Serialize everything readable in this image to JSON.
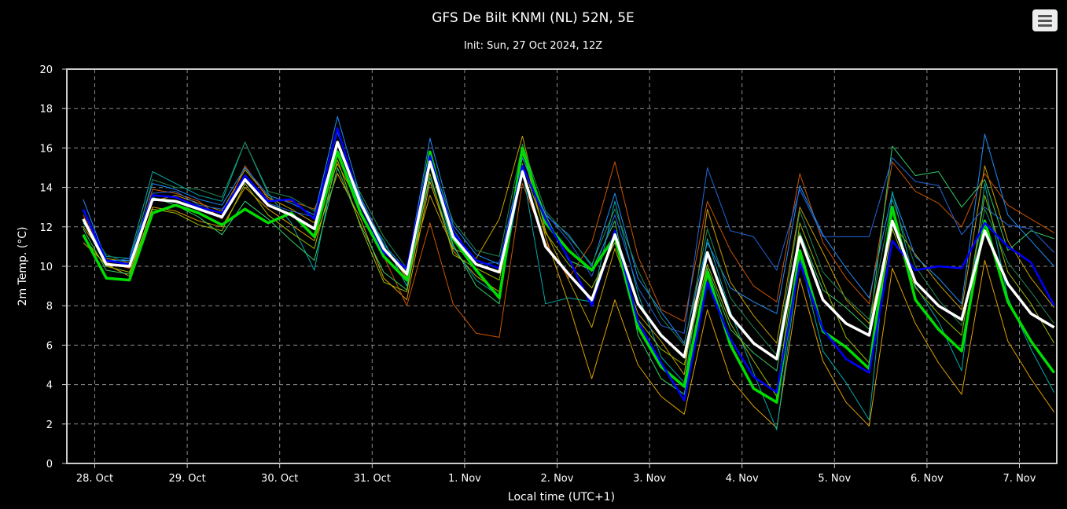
{
  "menu_icon": "hamburger-menu-icon",
  "chart_data": {
    "type": "line",
    "title": "GFS De Bilt KNMI (NL) 52N, 5E",
    "subtitle": "Init: Sun, 27 Oct 2024, 12Z",
    "xlabel": "Local time (UTC+1)",
    "ylabel": "2m Temp. (°C)",
    "ylim": [
      0,
      20
    ],
    "yticks": [
      0,
      2,
      4,
      6,
      8,
      10,
      12,
      14,
      16,
      18,
      20
    ],
    "x_tick_labels": [
      "28. Oct",
      "29. Oct",
      "30. Oct",
      "31. Oct",
      "1. Nov",
      "2. Nov",
      "3. Nov",
      "4. Nov",
      "5. Nov",
      "6. Nov",
      "7. Nov"
    ],
    "x_time_step_hours": 6,
    "x_first_hours_after_28oct_00": -3,
    "grid": true,
    "background": "#000000",
    "axis_color": "#cccccc",
    "series": [
      {
        "color": "#ffffff",
        "width": 3.5,
        "values": [
          12.4,
          10.1,
          10.0,
          13.4,
          13.3,
          12.9,
          12.5,
          14.4,
          13.1,
          12.6,
          11.9,
          16.3,
          13.2,
          10.9,
          9.6,
          15.3,
          11.5,
          10.1,
          9.7,
          14.8,
          11.0,
          9.6,
          8.3,
          11.6,
          8.1,
          6.5,
          5.4,
          10.7,
          7.5,
          6.1,
          5.3,
          11.5,
          8.3,
          7.1,
          6.5,
          12.3,
          9.2,
          8.0,
          7.3,
          11.8,
          9.1,
          7.6,
          6.9
        ]
      },
      {
        "color": "#0000ff",
        "width": 2.5,
        "values": [
          12.9,
          10.3,
          10.1,
          13.6,
          13.5,
          13.0,
          12.7,
          14.6,
          13.3,
          13.4,
          12.4,
          17.0,
          13.1,
          10.7,
          9.9,
          15.6,
          11.7,
          10.3,
          9.9,
          15.1,
          12.4,
          10.4,
          8.0,
          11.8,
          7.2,
          5.1,
          3.2,
          9.2,
          6.3,
          4.4,
          3.6,
          10.2,
          6.8,
          5.3,
          4.6,
          11.3,
          9.8,
          10.0,
          9.9,
          12.2,
          11.0,
          10.2,
          8.0
        ]
      },
      {
        "color": "#00dd00",
        "width": 3.5,
        "values": [
          11.6,
          9.4,
          9.3,
          12.7,
          13.1,
          12.7,
          12.1,
          12.9,
          12.2,
          12.7,
          11.5,
          15.8,
          12.7,
          10.5,
          9.3,
          15.8,
          11.4,
          9.8,
          8.4,
          16.0,
          12.2,
          10.8,
          9.8,
          11.5,
          6.9,
          4.9,
          3.9,
          9.7,
          6.0,
          3.8,
          3.1,
          10.8,
          6.7,
          5.9,
          4.8,
          13.0,
          8.3,
          6.8,
          5.7,
          12.3,
          8.2,
          6.2,
          4.6
        ]
      },
      {
        "color": "#e0a000",
        "width": 1,
        "values": [
          11.2,
          10.1,
          9.5,
          13.0,
          12.8,
          12.3,
          12.0,
          14.0,
          12.9,
          12.1,
          11.3,
          14.7,
          12.4,
          9.4,
          8.3,
          14.3,
          10.8,
          9.5,
          8.7,
          15.9,
          11.5,
          8.1,
          4.3,
          8.3,
          5.0,
          3.4,
          2.5,
          7.8,
          4.3,
          2.9,
          1.8,
          9.4,
          5.2,
          3.1,
          1.9,
          9.9,
          7.1,
          5.1,
          3.5,
          10.3,
          6.2,
          4.3,
          2.6
        ]
      },
      {
        "color": "#c8a000",
        "width": 1,
        "values": [
          12.0,
          10.4,
          10.2,
          13.3,
          13.6,
          13.2,
          12.8,
          14.9,
          13.5,
          12.9,
          12.2,
          15.2,
          13.0,
          11.0,
          9.4,
          13.6,
          10.9,
          10.4,
          12.4,
          16.6,
          11.8,
          9.3,
          6.9,
          10.9,
          7.6,
          6.2,
          4.5,
          12.9,
          9.2,
          7.5,
          6.1,
          13.0,
          10.7,
          8.3,
          7.1,
          12.2,
          10.6,
          9.1,
          7.8,
          15.1,
          11.3,
          9.4,
          7.9
        ]
      },
      {
        "color": "#cc5500",
        "width": 1,
        "values": [
          12.6,
          10.2,
          9.9,
          13.9,
          13.7,
          13.3,
          12.4,
          15.1,
          13.4,
          13.3,
          12.9,
          15.6,
          12.8,
          10.5,
          8.0,
          12.2,
          8.1,
          6.6,
          6.4,
          14.2,
          11.2,
          9.4,
          11.2,
          15.3,
          10.5,
          7.8,
          7.2,
          13.3,
          10.8,
          9.0,
          8.2,
          14.7,
          11.2,
          9.4,
          8.1,
          15.3,
          13.8,
          13.2,
          12.0,
          14.7,
          13.1,
          12.4,
          11.7
        ]
      },
      {
        "color": "#1f8fff",
        "width": 1,
        "values": [
          13.4,
          10.3,
          10.3,
          14.2,
          13.9,
          13.4,
          13.1,
          15.0,
          13.6,
          13.2,
          12.6,
          17.6,
          13.5,
          11.1,
          9.8,
          16.5,
          12.1,
          10.6,
          10.1,
          15.5,
          12.6,
          11.6,
          10.0,
          13.7,
          9.4,
          7.7,
          6.1,
          11.2,
          8.9,
          8.2,
          7.6,
          14.1,
          11.6,
          9.9,
          8.4,
          13.7,
          10.5,
          9.4,
          8.1,
          16.7,
          12.6,
          11.3,
          10.0
        ]
      },
      {
        "color": "#00aaaa",
        "width": 1,
        "values": [
          12.2,
          10.5,
          10.4,
          14.8,
          14.2,
          13.6,
          13.3,
          16.3,
          13.7,
          12.2,
          9.8,
          15.9,
          13.0,
          11.3,
          9.0,
          14.5,
          11.0,
          9.3,
          8.5,
          14.9,
          8.1,
          8.4,
          8.2,
          13.3,
          8.6,
          5.4,
          4.1,
          11.4,
          7.7,
          4.6,
          1.7,
          10.5,
          5.7,
          4.1,
          2.2,
          13.8,
          9.0,
          7.2,
          4.7,
          14.2,
          8.4,
          5.8,
          3.6
        ]
      },
      {
        "color": "#33cc66",
        "width": 1,
        "values": [
          11.9,
          9.8,
          9.6,
          13.5,
          13.1,
          12.5,
          11.6,
          13.3,
          12.4,
          11.3,
          10.3,
          15.0,
          12.1,
          9.7,
          8.8,
          15.1,
          11.1,
          9.0,
          8.1,
          15.7,
          12.6,
          10.3,
          9.8,
          12.3,
          6.5,
          4.3,
          3.5,
          9.9,
          6.8,
          5.6,
          4.7,
          11.7,
          8.8,
          7.9,
          6.8,
          16.1,
          14.6,
          14.8,
          13.0,
          14.4,
          10.8,
          11.8,
          11.4
        ]
      },
      {
        "color": "#2266dd",
        "width": 1,
        "values": [
          12.8,
          10.2,
          10.4,
          13.7,
          13.8,
          13.1,
          12.9,
          14.3,
          13.2,
          12.8,
          12.5,
          16.8,
          13.4,
          10.9,
          9.7,
          15.8,
          11.9,
          10.1,
          10.2,
          15.0,
          12.7,
          11.3,
          9.5,
          12.6,
          8.9,
          7.0,
          6.6,
          15.0,
          11.8,
          11.5,
          9.8,
          13.9,
          11.5,
          11.5,
          11.5,
          15.5,
          14.3,
          14.1,
          11.6,
          13.0,
          12.1,
          11.9,
          10.7
        ]
      },
      {
        "color": "#99bb00",
        "width": 1,
        "values": [
          11.5,
          10.0,
          9.7,
          12.9,
          12.7,
          12.1,
          11.8,
          14.2,
          12.6,
          11.7,
          10.9,
          15.4,
          12.0,
          9.2,
          8.7,
          14.7,
          10.6,
          9.9,
          9.3,
          15.2,
          11.7,
          10.1,
          8.9,
          11.2,
          7.3,
          5.8,
          5.0,
          10.1,
          7.1,
          5.2,
          3.4,
          12.2,
          9.2,
          6.4,
          5.1,
          11.9,
          8.9,
          7.6,
          6.5,
          13.6,
          9.7,
          8.1,
          6.1
        ]
      },
      {
        "color": "#228855",
        "width": 1,
        "values": [
          12.3,
          10.6,
          10.1,
          14.4,
          14.0,
          13.9,
          13.5,
          16.3,
          13.8,
          13.5,
          12.8,
          15.9,
          13.7,
          11.5,
          9.9,
          15.5,
          12.3,
          10.8,
          10.5,
          16.2,
          12.8,
          11.5,
          10.1,
          12.9,
          9.8,
          7.4,
          6.0,
          11.9,
          8.4,
          6.9,
          5.5,
          12.8,
          9.7,
          8.4,
          7.3,
          13.4,
          10.0,
          8.3,
          7.0,
          12.9,
          10.2,
          8.7,
          7.1
        ]
      }
    ]
  }
}
